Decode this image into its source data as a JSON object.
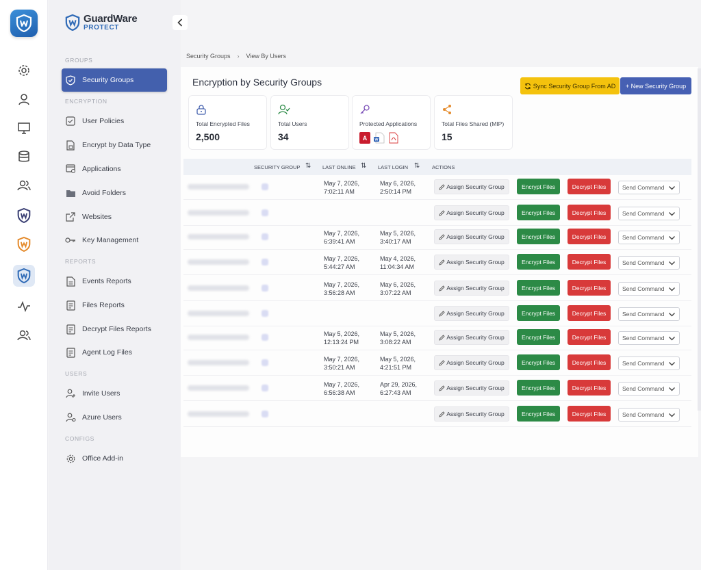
{
  "brand": {
    "name": "GuardWare",
    "sub": "PROTECT"
  },
  "rail": {
    "icons": [
      "gear-icon",
      "user-icon",
      "monitor-icon",
      "database-icon",
      "users-icon",
      "guardware-dark-icon",
      "guardware-orange-icon",
      "guardware-active-icon",
      "activity-icon",
      "team-icon"
    ],
    "active_index": 7
  },
  "sidebar": {
    "sections": {
      "groups": "GROUPS",
      "encryption": "ENCRYPTION",
      "reports": "REPORTS",
      "users": "USERS",
      "configs": "CONFIGS"
    },
    "items": [
      {
        "label": "Security Groups",
        "icon": "shield-icon",
        "active": true
      },
      {
        "label": "User Policies",
        "icon": "checkbox-icon"
      },
      {
        "label": "Encrypt by Data Type",
        "icon": "file-lock-icon"
      },
      {
        "label": "Applications",
        "icon": "window-gear-icon"
      },
      {
        "label": "Avoid Folders",
        "icon": "folder-icon"
      },
      {
        "label": "Websites",
        "icon": "external-link-icon"
      },
      {
        "label": "Key Management",
        "icon": "key-icon"
      },
      {
        "label": "Events Reports",
        "icon": "document-icon"
      },
      {
        "label": "Files Reports",
        "icon": "list-doc-icon"
      },
      {
        "label": "Decrypt Files Reports",
        "icon": "list-doc-icon"
      },
      {
        "label": "Agent Log Files",
        "icon": "list-doc-icon"
      },
      {
        "label": "Invite Users",
        "icon": "user-add-icon"
      },
      {
        "label": "Azure Users",
        "icon": "user-settings-icon"
      },
      {
        "label": "Office Add-in",
        "icon": "gear-icon"
      }
    ]
  },
  "breadcrumb": {
    "parent": "Security Groups",
    "current": "View By Users"
  },
  "page": {
    "title": "Encryption by Security Groups",
    "sync_button": "Sync Security Group From AD",
    "new_button": "+ New Security Group"
  },
  "stats": {
    "encrypted": {
      "label": "Total Encrypted Files",
      "value": "2,500"
    },
    "users": {
      "label": "Total Users",
      "value": "34"
    },
    "apps": {
      "label": "Protected Applications"
    },
    "shared": {
      "label": "Total Files Shared (MIP)",
      "value": "15"
    }
  },
  "table": {
    "headers": {
      "group": "SECURITY GROUP",
      "last_online": "LAST ONLINE",
      "last_login": "LAST LOGIN",
      "actions": "ACTIONS"
    },
    "actions": {
      "assign": "Assign Security Group",
      "encrypt": "Encrypt Files",
      "decrypt": "Decrypt Files",
      "command": "Send Command"
    },
    "rows": [
      {
        "online_date": "May 7, 2026,",
        "online_time": "7:02:11 AM",
        "login_date": "May 6, 2026,",
        "login_time": "2:50:14 PM"
      },
      {
        "online_date": "",
        "online_time": "",
        "login_date": "",
        "login_time": ""
      },
      {
        "online_date": "May 7, 2026,",
        "online_time": "6:39:41 AM",
        "login_date": "May 5, 2026,",
        "login_time": "3:40:17 AM"
      },
      {
        "online_date": "May 7, 2026,",
        "online_time": "5:44:27 AM",
        "login_date": "May 4, 2026,",
        "login_time": "11:04:34 AM"
      },
      {
        "online_date": "May 7, 2026,",
        "online_time": "3:56:28 AM",
        "login_date": "May 6, 2026,",
        "login_time": "3:07:22 AM"
      },
      {
        "online_date": "",
        "online_time": "",
        "login_date": "",
        "login_time": ""
      },
      {
        "online_date": "May 5, 2026,",
        "online_time": "12:13:24 PM",
        "login_date": "May 5, 2026,",
        "login_time": "3:08:22 AM"
      },
      {
        "online_date": "May 7, 2026,",
        "online_time": "3:50:21 AM",
        "login_date": "May 5, 2026,",
        "login_time": "4:21:51 PM"
      },
      {
        "online_date": "May 7, 2026,",
        "online_time": "6:56:38 AM",
        "login_date": "Apr 29, 2026,",
        "login_time": "6:27:43 AM"
      },
      {
        "online_date": "",
        "online_time": "",
        "login_date": "",
        "login_time": ""
      }
    ]
  },
  "colors": {
    "primary": "#4360ad",
    "sync": "#f4c20d",
    "encrypt": "#2c8a46",
    "decrypt": "#d83a3a"
  }
}
